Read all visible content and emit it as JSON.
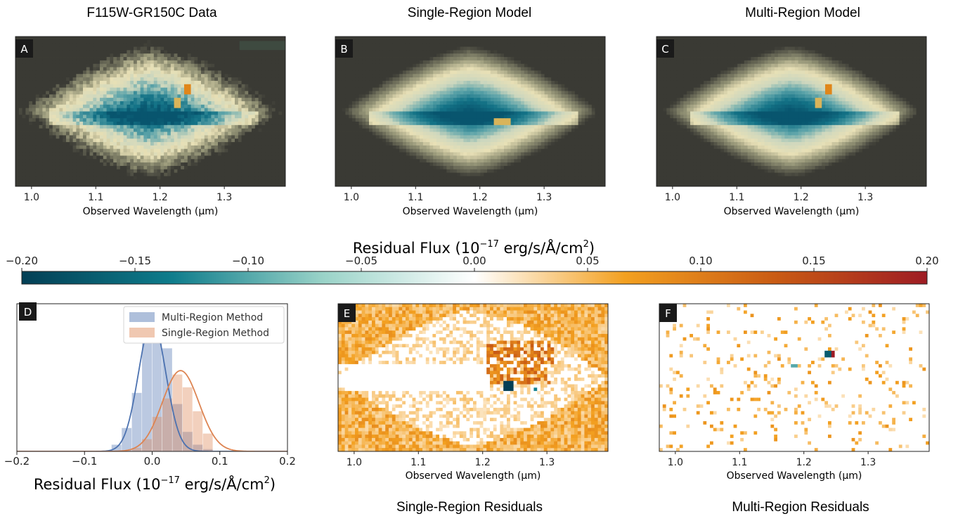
{
  "figure": {
    "panels": [
      {
        "letter": "A",
        "title": "F115W-GR150C Data",
        "xlabel": "Observed Wavelength (μm)",
        "type": "data"
      },
      {
        "letter": "B",
        "title": "Single-Region Model",
        "xlabel": "Observed Wavelength (μm)",
        "type": "single-model"
      },
      {
        "letter": "C",
        "title": "Multi-Region Model",
        "xlabel": "Observed Wavelength (μm)",
        "type": "multi-model"
      },
      {
        "letter": "E",
        "title": "Single-Region Residuals",
        "xlabel": "Observed Wavelength (μm)",
        "type": "single-resid"
      },
      {
        "letter": "F",
        "title": "Multi-Region Residuals",
        "xlabel": "Observed Wavelength (μm)",
        "type": "multi-resid"
      }
    ],
    "image_x_ticks": [
      "1.0",
      "1.1",
      "1.2",
      "1.3"
    ],
    "image_x_values": [
      1.0,
      1.1,
      1.2,
      1.3
    ],
    "image_x_range": [
      0.975,
      1.395
    ]
  },
  "colorbar": {
    "label": "Residual Flux (10",
    "label_exp": "−17",
    "label_units": " erg/s/Å/cm",
    "label_sq": "2",
    "label_close": ")",
    "ticks": [
      "−0.20",
      "−0.15",
      "−0.10",
      "−0.05",
      "0.00",
      "0.05",
      "0.10",
      "0.15",
      "0.20"
    ],
    "range": [
      -0.2,
      0.2
    ],
    "colors": [
      "#033f55",
      "#0f7d8c",
      "#9ad3c8",
      "#ffffff",
      "#f3a020",
      "#c95b14",
      "#9e1c24"
    ]
  },
  "chart_data": {
    "type": "histogram",
    "panel_letter": "D",
    "xlabel": "Residual Flux (10",
    "xlabel_exp": "−17",
    "xlabel_units": " erg/s/Å/cm",
    "xlabel_sq": "2",
    "xlabel_close": ")",
    "xlim": [
      -0.2,
      0.2
    ],
    "x_ticks": [
      "−0.2",
      "−0.1",
      "0.0",
      "0.1",
      "0.2"
    ],
    "x_tick_values": [
      -0.2,
      -0.1,
      0.0,
      0.1,
      0.2
    ],
    "legend_position": "top-right",
    "bin_edges": [
      -0.06,
      -0.045,
      -0.03,
      -0.015,
      0.0,
      0.015,
      0.03,
      0.045,
      0.06,
      0.075,
      0.09
    ],
    "series": [
      {
        "name": "Multi-Region Method",
        "color": "#4c72b0",
        "counts": [
          0.12,
          0.42,
          1.05,
          2.05,
          2.45,
          1.85,
          0.85,
          0.35,
          0.12,
          0.04
        ],
        "kde_mean": 0.0,
        "kde_sd": 0.02,
        "kde_peak": 2.35
      },
      {
        "name": "Single-Region Method",
        "color": "#dd8452",
        "counts": [
          0.0,
          0.02,
          0.06,
          0.22,
          0.62,
          0.95,
          1.38,
          1.15,
          0.72,
          0.32
        ],
        "kde_mean": 0.042,
        "kde_sd": 0.027,
        "kde_peak": 1.45
      }
    ],
    "ylim": [
      0,
      2.65
    ]
  }
}
